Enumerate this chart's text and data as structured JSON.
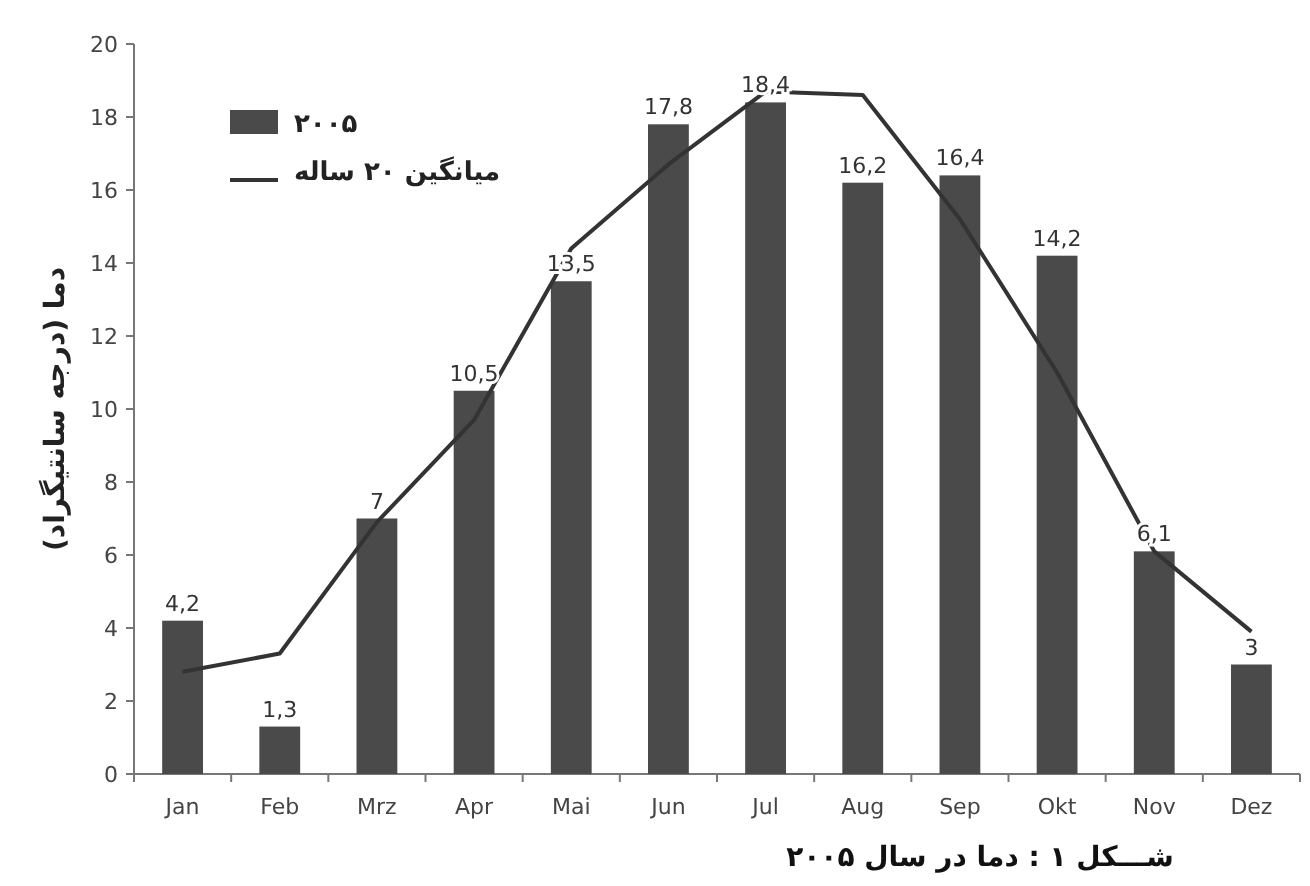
{
  "chart_data": {
    "type": "bar",
    "title": "شـــکل ۱ : دما در سال ۲۰۰۵",
    "ylabel": "دما (درجه سانتیگراد)",
    "categories": [
      "Jan",
      "Feb",
      "Mrz",
      "Apr",
      "Mai",
      "Jun",
      "Jul",
      "Aug",
      "Sep",
      "Okt",
      "Nov",
      "Dez"
    ],
    "series": [
      {
        "name": "۲۰۰۵",
        "color": "#4a4a4a",
        "values": [
          4.2,
          1.3,
          7,
          10.5,
          13.5,
          17.8,
          18.4,
          16.2,
          16.4,
          14.2,
          6.1,
          3
        ],
        "value_labels": [
          "4,2",
          "1,3",
          "7",
          "10,5",
          "13,5",
          "17,8",
          "18,4",
          "16,2",
          "16,4",
          "14,2",
          "6,1",
          "3"
        ]
      },
      {
        "name": "میانگین ۲۰ ساله",
        "type": "line",
        "color": "#333333",
        "values": [
          2.8,
          3.3,
          6.9,
          9.7,
          14.4,
          16.7,
          18.7,
          18.6,
          15.2,
          11,
          6.1,
          3.9
        ]
      }
    ],
    "ylim": [
      0,
      20
    ],
    "yticks": [
      0,
      2,
      4,
      6,
      8,
      10,
      12,
      14,
      16,
      18,
      20
    ],
    "legend": "top left",
    "grid": false,
    "marker": "none"
  }
}
